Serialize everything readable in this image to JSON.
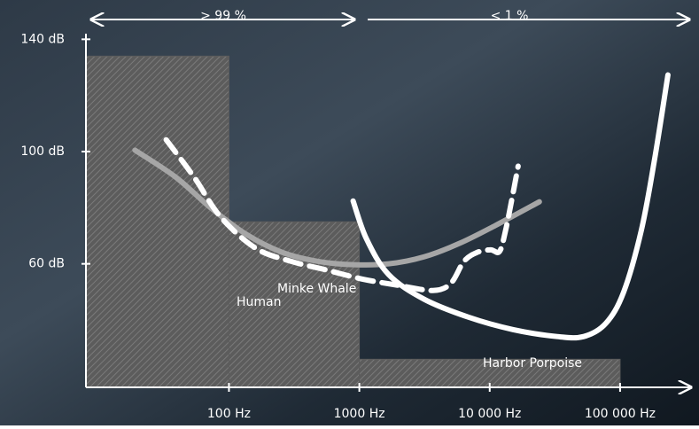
{
  "chart_data": {
    "type": "line",
    "xscale": "log",
    "xlim": [
      8,
      350000
    ],
    "ylim": [
      16,
      142
    ],
    "xticks": [
      {
        "value": 100,
        "label": "100 Hz"
      },
      {
        "value": 1000,
        "label": "1000 Hz"
      },
      {
        "value": 10000,
        "label": "10 000 Hz"
      },
      {
        "value": 100000,
        "label": "100 000 Hz"
      }
    ],
    "yticks": [
      {
        "value": 60,
        "label": "60 dB"
      },
      {
        "value": 100,
        "label": "100 dB"
      },
      {
        "value": 140,
        "label": "140 dB"
      }
    ],
    "bars": {
      "bins": [
        8,
        100,
        1000,
        100000
      ],
      "values": [
        134,
        75,
        26
      ],
      "color": "#5c5c5c"
    },
    "series": [
      {
        "name": "Human",
        "color": "#a6a6a6",
        "dashed": false,
        "x": [
          19,
          39,
          73,
          137,
          256,
          479,
          896,
          1676,
          3137,
          5870,
          10990,
          24040
        ],
        "values": [
          100.5,
          90.9,
          79.8,
          70.4,
          64.1,
          60.9,
          59.7,
          60,
          62.5,
          67.3,
          73.6,
          82.1
        ]
      },
      {
        "name": "Minke Whale",
        "color": "#ffffff",
        "dashed": true,
        "x": [
          33,
          54,
          86,
          160,
          299,
          560,
          1048,
          1963,
          3670,
          5020,
          6350,
          8030,
          10160,
          11890,
          13250,
          15030,
          16520
        ],
        "values": [
          104.2,
          90.9,
          76.8,
          65.6,
          60.9,
          57.8,
          54.6,
          52.4,
          50.5,
          53,
          60.9,
          64.1,
          65,
          64.4,
          72,
          84.7,
          94.8
        ]
      },
      {
        "name": "Harbor Porpoise",
        "color": "#ffffff",
        "dashed": false,
        "x": [
          896,
          1134,
          1676,
          3137,
          6870,
          15030,
          32890,
          52600,
          77800,
          106400,
          145600,
          184000,
          232800
        ],
        "values": [
          82.4,
          68.9,
          56.2,
          47.4,
          41,
          36.6,
          34.1,
          34.1,
          38.8,
          49.9,
          72,
          97.3,
          127.3
        ]
      }
    ],
    "annotations": [
      "> 99 %",
      "< 1 %"
    ]
  }
}
